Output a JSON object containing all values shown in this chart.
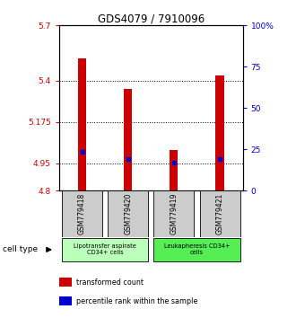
{
  "title": "GDS4079 / 7910096",
  "samples": [
    "GSM779418",
    "GSM779420",
    "GSM779419",
    "GSM779421"
  ],
  "bar_values": [
    5.52,
    5.355,
    5.02,
    5.43
  ],
  "percentile_values": [
    5.01,
    4.975,
    4.955,
    4.975
  ],
  "ymin": 4.8,
  "ymax": 5.7,
  "yticks_left": [
    4.8,
    4.95,
    5.175,
    5.4,
    5.7
  ],
  "ytick_labels_left": [
    "4.8",
    "4.95",
    "5.175",
    "5.4",
    "5.7"
  ],
  "yticks_right": [
    0,
    25,
    50,
    75,
    100
  ],
  "ytick_labels_right": [
    "0",
    "25",
    "50",
    "75",
    "100%"
  ],
  "bar_color": "#cc0000",
  "dot_color": "#0000cc",
  "tick_label_color_left": "#cc0000",
  "tick_label_color_right": "#0000cc",
  "group1_label": "Lipotransfer aspirate\nCD34+ cells",
  "group2_label": "Leukapheresis CD34+\ncells",
  "group1_color": "#bbffbb",
  "group2_color": "#55ee55",
  "legend_items": [
    {
      "color": "#cc0000",
      "label": "transformed count"
    },
    {
      "color": "#0000cc",
      "label": "percentile rank within the sample"
    }
  ],
  "cell_type_label": "cell type",
  "bar_width": 0.18,
  "sample_box_color": "#cccccc"
}
